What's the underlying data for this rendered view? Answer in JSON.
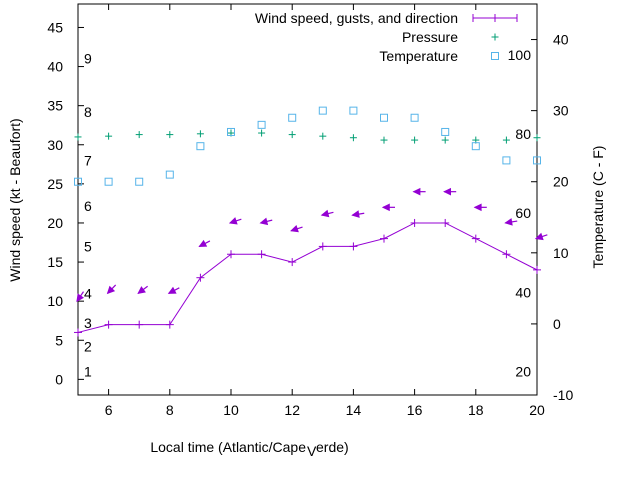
{
  "chart_data": {
    "type": "line",
    "xlabel": "Local time (Atlantic/Cape",
    "xlabel_sub": "V",
    "xlabel_tail": "erde)",
    "ylabel": "Wind speed (kt - Beaufort)",
    "y2label": "Temperature (C - F)",
    "xlim": [
      5,
      20
    ],
    "ylim": [
      -2,
      48
    ],
    "y2lim": [
      -10,
      45
    ],
    "xticks": [
      6,
      8,
      10,
      12,
      14,
      16,
      18,
      20
    ],
    "yticks": [
      0,
      5,
      10,
      15,
      20,
      25,
      30,
      35,
      40,
      45
    ],
    "y2ticks": [
      -10,
      0,
      10,
      20,
      30,
      40
    ],
    "beaufort_labels": [
      {
        "text": "1",
        "y": 1
      },
      {
        "text": "2",
        "y": 4.2
      },
      {
        "text": "3",
        "y": 7.2
      },
      {
        "text": "4",
        "y": 11
      },
      {
        "text": "5",
        "y": 17
      },
      {
        "text": "6",
        "y": 22.2
      },
      {
        "text": "7",
        "y": 28
      },
      {
        "text": "8",
        "y": 34.2
      },
      {
        "text": "9",
        "y": 41
      }
    ],
    "fahrenheit_labels": [
      {
        "text": "20",
        "y2": -6.7
      },
      {
        "text": "40",
        "y2": 4.4
      },
      {
        "text": "60",
        "y2": 15.6
      },
      {
        "text": "80",
        "y2": 26.7
      },
      {
        "text": "100",
        "y2": 37.8
      }
    ],
    "legend": {
      "position": "top-right",
      "entries": [
        "Wind speed, gusts, and direction",
        "Pressure",
        "Temperature"
      ]
    },
    "series": [
      {
        "name": "Wind speed, gusts, and direction",
        "color": "#9400d3",
        "x": [
          5,
          6,
          7,
          8,
          9,
          10,
          11,
          12,
          13,
          14,
          15,
          16,
          17,
          18,
          19,
          20
        ],
        "values": [
          6,
          7,
          7,
          7,
          13,
          16,
          16,
          15,
          17,
          17,
          18,
          20,
          20,
          18,
          16,
          14
        ]
      },
      {
        "name": "Pressure",
        "color": "#009e73",
        "x": [
          5,
          6,
          7,
          8,
          9,
          10,
          11,
          12,
          13,
          14,
          15,
          16,
          17,
          18,
          19,
          20
        ],
        "values": [
          31,
          31.1,
          31.3,
          31.3,
          31.4,
          31.5,
          31.5,
          31.3,
          31.1,
          30.9,
          30.6,
          30.6,
          30.6,
          30.6,
          30.6,
          30.9
        ]
      },
      {
        "name": "Temperature",
        "color": "#56b4e9",
        "axis": "y2",
        "x": [
          5,
          6,
          7,
          8,
          9,
          10,
          11,
          12,
          13,
          14,
          15,
          16,
          17,
          18,
          19,
          20
        ],
        "values": [
          20,
          20,
          20,
          21,
          25,
          27,
          28,
          29,
          30,
          30,
          29,
          29,
          27,
          25,
          23,
          23
        ]
      },
      {
        "name": "Wind direction arrows",
        "color": "#9400d3",
        "x": [
          5,
          6,
          7,
          8,
          9,
          10,
          11,
          12,
          13,
          14,
          15,
          16,
          17,
          18,
          19,
          20
        ],
        "values": [
          10,
          11,
          11,
          11,
          17,
          20,
          20,
          19,
          21,
          21,
          22,
          24,
          24,
          22,
          20,
          18
        ],
        "direction_from_deg": [
          30,
          40,
          50,
          60,
          60,
          70,
          75,
          70,
          75,
          80,
          90,
          90,
          90,
          90,
          80,
          70
        ]
      }
    ]
  }
}
